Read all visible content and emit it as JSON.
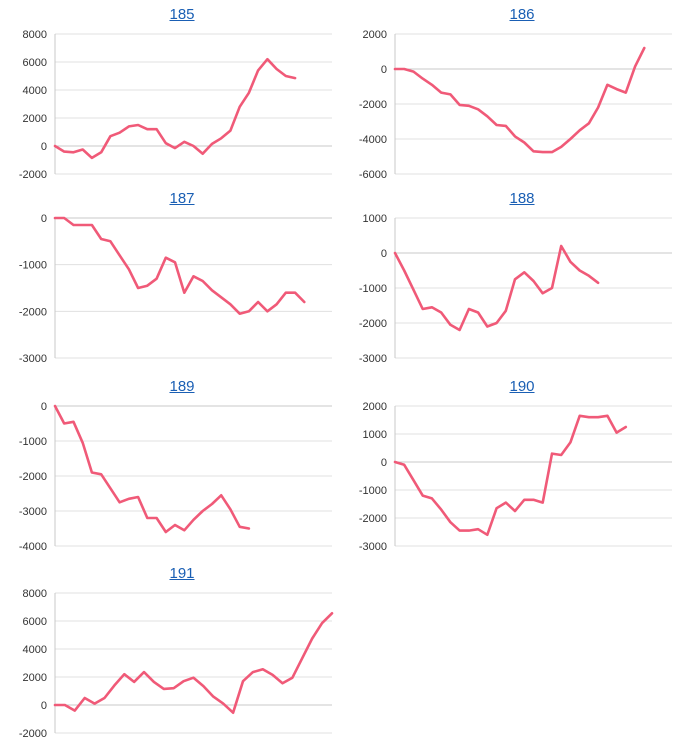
{
  "chart_data": [
    {
      "type": "line",
      "title": "185",
      "ylim": [
        -2000,
        8000
      ],
      "yticks": [
        8000,
        6000,
        4000,
        2000,
        0,
        -2000
      ],
      "series": [
        {
          "values": [
            0,
            -400,
            -450,
            -250,
            -850,
            -450,
            700,
            950,
            1400,
            1500,
            1200,
            1200,
            200,
            -150,
            300,
            0,
            -550,
            150,
            550,
            1100,
            2800,
            3800,
            5400,
            6200,
            5500,
            5000,
            4850
          ]
        }
      ]
    },
    {
      "type": "line",
      "title": "186",
      "ylim": [
        -6000,
        2000
      ],
      "yticks": [
        2000,
        0,
        -2000,
        -4000,
        -6000
      ],
      "series": [
        {
          "values": [
            0,
            0,
            -150,
            -550,
            -900,
            -1350,
            -1450,
            -2050,
            -2100,
            -2300,
            -2700,
            -3200,
            -3250,
            -3850,
            -4200,
            -4700,
            -4750,
            -4750,
            -4450,
            -4000,
            -3500,
            -3100,
            -2200,
            -900,
            -1150,
            -1350,
            150,
            1200
          ]
        }
      ]
    },
    {
      "type": "line",
      "title": "187",
      "ylim": [
        -3000,
        0
      ],
      "yticks": [
        0,
        -1000,
        -2000,
        -3000
      ],
      "series": [
        {
          "values": [
            0,
            0,
            -150,
            -150,
            -150,
            -450,
            -500,
            -800,
            -1100,
            -1500,
            -1450,
            -1300,
            -850,
            -950,
            -1600,
            -1250,
            -1350,
            -1550,
            -1700,
            -1850,
            -2050,
            -2000,
            -1800,
            -2000,
            -1850,
            -1600,
            -1600,
            -1800
          ]
        }
      ]
    },
    {
      "type": "line",
      "title": "188",
      "ylim": [
        -3000,
        1000
      ],
      "yticks": [
        1000,
        0,
        -1000,
        -2000,
        -3000
      ],
      "series": [
        {
          "values": [
            0,
            -500,
            -1050,
            -1600,
            -1550,
            -1700,
            -2050,
            -2200,
            -1600,
            -1700,
            -2100,
            -2000,
            -1650,
            -750,
            -550,
            -800,
            -1150,
            -1000,
            200,
            -250,
            -500,
            -650,
            -850
          ]
        }
      ]
    },
    {
      "type": "line",
      "title": "189",
      "ylim": [
        -4000,
        0
      ],
      "yticks": [
        0,
        -1000,
        -2000,
        -3000,
        -4000
      ],
      "series": [
        {
          "values": [
            0,
            -500,
            -450,
            -1050,
            -1900,
            -1950,
            -2350,
            -2750,
            -2650,
            -2600,
            -3200,
            -3200,
            -3600,
            -3400,
            -3550,
            -3250,
            -3000,
            -2800,
            -2550,
            -2950,
            -3450,
            -3500
          ]
        }
      ]
    },
    {
      "type": "line",
      "title": "190",
      "ylim": [
        -3000,
        2000
      ],
      "yticks": [
        2000,
        1000,
        0,
        -1000,
        -2000,
        -3000
      ],
      "series": [
        {
          "values": [
            0,
            -100,
            -650,
            -1200,
            -1300,
            -1700,
            -2150,
            -2450,
            -2450,
            -2400,
            -2600,
            -1650,
            -1450,
            -1750,
            -1350,
            -1350,
            -1450,
            300,
            250,
            700,
            1650,
            1600,
            1600,
            1650,
            1050,
            1250
          ]
        }
      ]
    },
    {
      "type": "line",
      "title": "191",
      "ylim": [
        -2000,
        8000
      ],
      "yticks": [
        8000,
        6000,
        4000,
        2000,
        0,
        -2000
      ],
      "series": [
        {
          "values": [
            0,
            0,
            -400,
            500,
            100,
            500,
            1400,
            2200,
            1650,
            2350,
            1650,
            1150,
            1200,
            1700,
            1950,
            1350,
            600,
            100,
            -550,
            1700,
            2350,
            2550,
            2150,
            1550,
            1950,
            3350,
            4750,
            5850,
            6550
          ]
        }
      ]
    }
  ],
  "colors": {
    "line": "#f05a78",
    "axis": "#c8c8c8",
    "grid": "#e0e0e0",
    "title_link": "#1a5fb4"
  }
}
